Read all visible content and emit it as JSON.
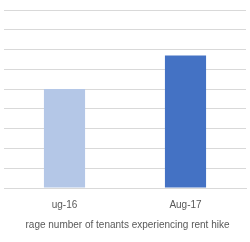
{
  "chart_data": {
    "type": "bar",
    "categories": [
      "ug-16",
      "Aug-17"
    ],
    "series": [
      {
        "name": "rage number of tenants experiencing rent hike",
        "values": [
          5,
          6.7
        ]
      }
    ],
    "colors": [
      "#b4c7e7",
      "#4472c4"
    ],
    "ylim": [
      0,
      9
    ],
    "yticks": [
      0,
      1,
      2,
      3,
      4,
      5,
      6,
      7,
      8,
      9
    ],
    "grid": true,
    "legend": "bottom",
    "tick_labels": "x"
  }
}
